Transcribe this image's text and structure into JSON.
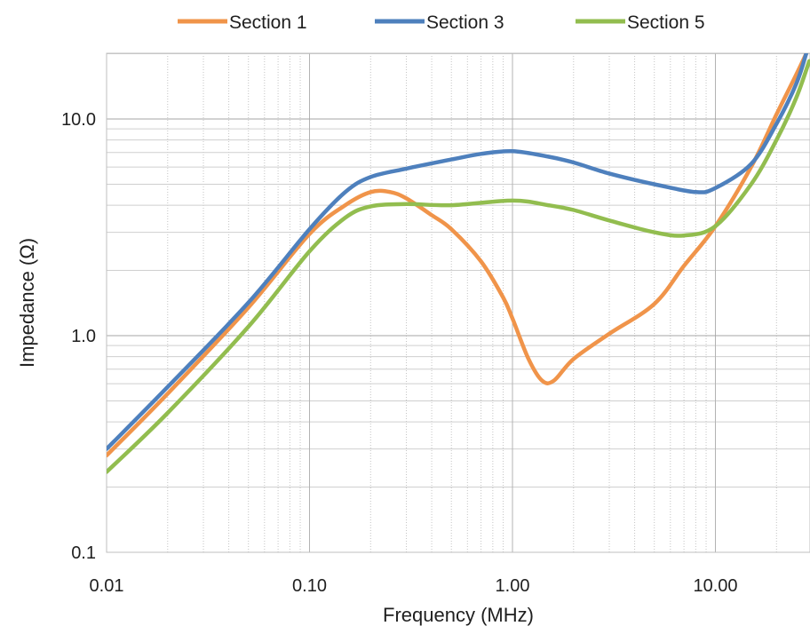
{
  "chart_data": {
    "type": "line",
    "xlabel": "Frequency (MHz)",
    "ylabel": "Impedance (Ω)",
    "x_scale": "log",
    "y_scale": "log",
    "xlim": [
      0.01,
      30
    ],
    "ylim": [
      0.1,
      20
    ],
    "x_ticks": [
      0.01,
      0.1,
      1,
      10
    ],
    "x_tick_labels": [
      "0.01",
      "0.10",
      "1.00",
      "10.00"
    ],
    "y_ticks": [
      0.1,
      1,
      10
    ],
    "y_tick_labels": [
      "0.1",
      "1.0",
      "10.0"
    ],
    "grid": "major and minor (log)",
    "legend_position": "top",
    "series": [
      {
        "name": "Section 1",
        "color": "#f0944a",
        "points": [
          [
            0.01,
            0.28
          ],
          [
            0.02,
            0.54
          ],
          [
            0.05,
            1.35
          ],
          [
            0.1,
            2.95
          ],
          [
            0.15,
            4.0
          ],
          [
            0.2,
            4.6
          ],
          [
            0.25,
            4.6
          ],
          [
            0.3,
            4.3
          ],
          [
            0.4,
            3.6
          ],
          [
            0.5,
            3.1
          ],
          [
            0.7,
            2.2
          ],
          [
            0.9,
            1.5
          ],
          [
            1.0,
            1.2
          ],
          [
            1.2,
            0.78
          ],
          [
            1.4,
            0.62
          ],
          [
            1.6,
            0.62
          ],
          [
            2.0,
            0.78
          ],
          [
            3.0,
            1.02
          ],
          [
            5.0,
            1.4
          ],
          [
            7.0,
            2.1
          ],
          [
            10.0,
            3.2
          ],
          [
            15.0,
            6.0
          ],
          [
            20.0,
            10.5
          ],
          [
            25.0,
            16.0
          ],
          [
            28.0,
            20.0
          ]
        ]
      },
      {
        "name": "Section 3",
        "color": "#4e80bd",
        "points": [
          [
            0.01,
            0.3
          ],
          [
            0.02,
            0.58
          ],
          [
            0.05,
            1.42
          ],
          [
            0.1,
            3.1
          ],
          [
            0.15,
            4.6
          ],
          [
            0.2,
            5.4
          ],
          [
            0.3,
            5.9
          ],
          [
            0.5,
            6.5
          ],
          [
            0.7,
            6.9
          ],
          [
            1.0,
            7.1
          ],
          [
            1.5,
            6.7
          ],
          [
            2.0,
            6.3
          ],
          [
            3.0,
            5.6
          ],
          [
            5.0,
            5.0
          ],
          [
            8.0,
            4.6
          ],
          [
            10.0,
            4.8
          ],
          [
            15.0,
            6.2
          ],
          [
            20.0,
            9.5
          ],
          [
            25.0,
            14.5
          ],
          [
            28.0,
            20.0
          ]
        ]
      },
      {
        "name": "Section 5",
        "color": "#92bd4f",
        "points": [
          [
            0.01,
            0.235
          ],
          [
            0.02,
            0.44
          ],
          [
            0.05,
            1.1
          ],
          [
            0.1,
            2.45
          ],
          [
            0.15,
            3.5
          ],
          [
            0.2,
            3.95
          ],
          [
            0.3,
            4.05
          ],
          [
            0.5,
            4.0
          ],
          [
            1.0,
            4.2
          ],
          [
            1.5,
            4.0
          ],
          [
            2.0,
            3.8
          ],
          [
            3.0,
            3.4
          ],
          [
            5.0,
            3.0
          ],
          [
            7.0,
            2.9
          ],
          [
            10.0,
            3.2
          ],
          [
            15.0,
            5.0
          ],
          [
            20.0,
            8.0
          ],
          [
            25.0,
            12.5
          ],
          [
            29.0,
            18.5
          ]
        ]
      }
    ]
  }
}
